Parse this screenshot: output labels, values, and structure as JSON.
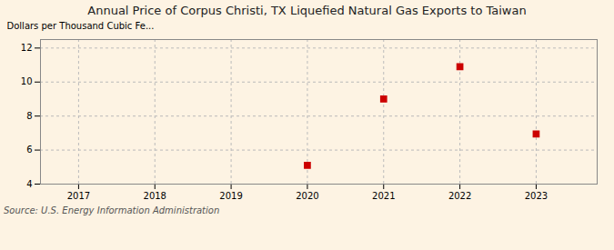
{
  "chart_data": {
    "type": "scatter",
    "title": "Annual Price of Corpus Christi, TX Liquefied Natural Gas Exports to Taiwan",
    "ylabel": "Dollars per Thousand Cubic Fe...",
    "annotation": "Source: U.S. Energy Information Administration",
    "x": [
      2020,
      2021,
      2022,
      2023
    ],
    "values": [
      5.1,
      9.0,
      10.9,
      6.95
    ],
    "color": "#cc0000",
    "marker": "square",
    "xlim": [
      2016.5,
      2023.8
    ],
    "ylim": [
      4,
      12.5
    ],
    "xticks": [
      2017,
      2018,
      2019,
      2020,
      2021,
      2022,
      2023
    ],
    "yticks": [
      4,
      6,
      8,
      10,
      12
    ],
    "grid": true
  }
}
